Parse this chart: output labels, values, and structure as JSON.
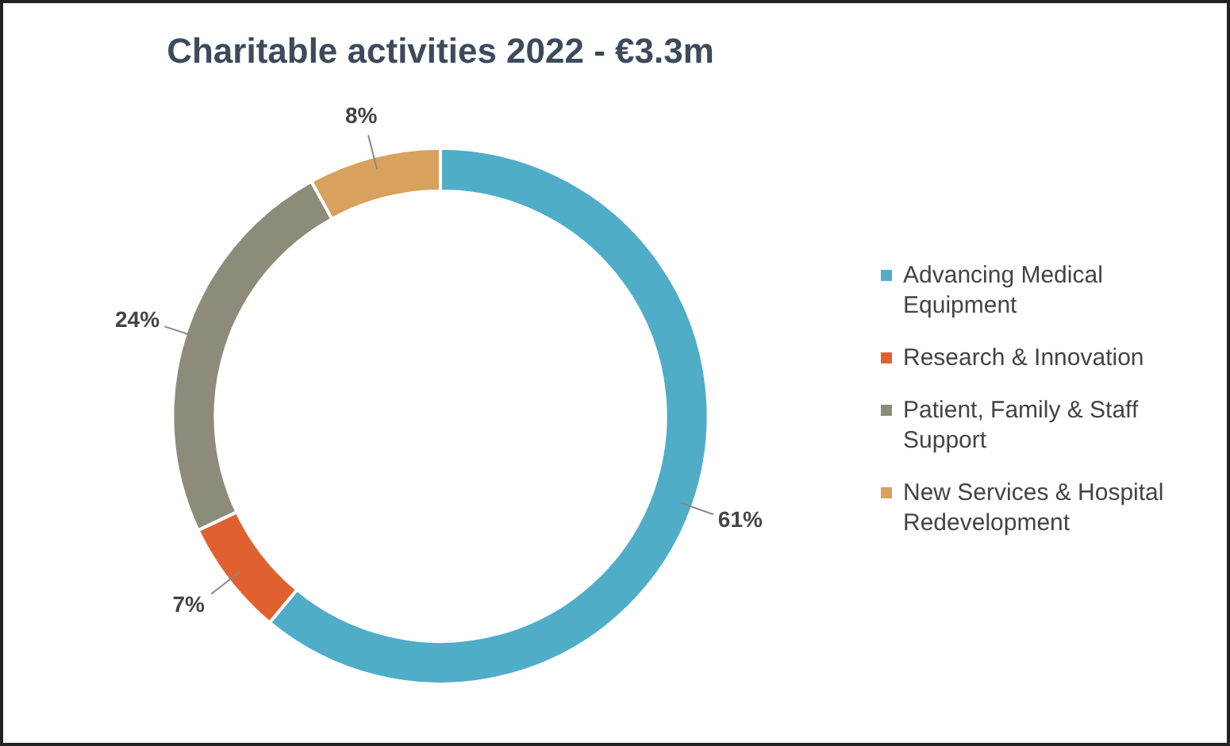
{
  "chart_data": {
    "type": "donut",
    "title": "Charitable activities 2022 - €3.3m",
    "categories": [
      "Advancing Medical Equipment",
      "Research & Innovation",
      "Patient, Family & Staff Support",
      "New Services & Hospital Redevelopment"
    ],
    "values": [
      61,
      7,
      24,
      8
    ],
    "colors": [
      "#4fadc8",
      "#e0612f",
      "#8d8c7a",
      "#d8a15e"
    ],
    "value_labels": [
      "61%",
      "7%",
      "24%",
      "8%"
    ],
    "legend": "right"
  }
}
